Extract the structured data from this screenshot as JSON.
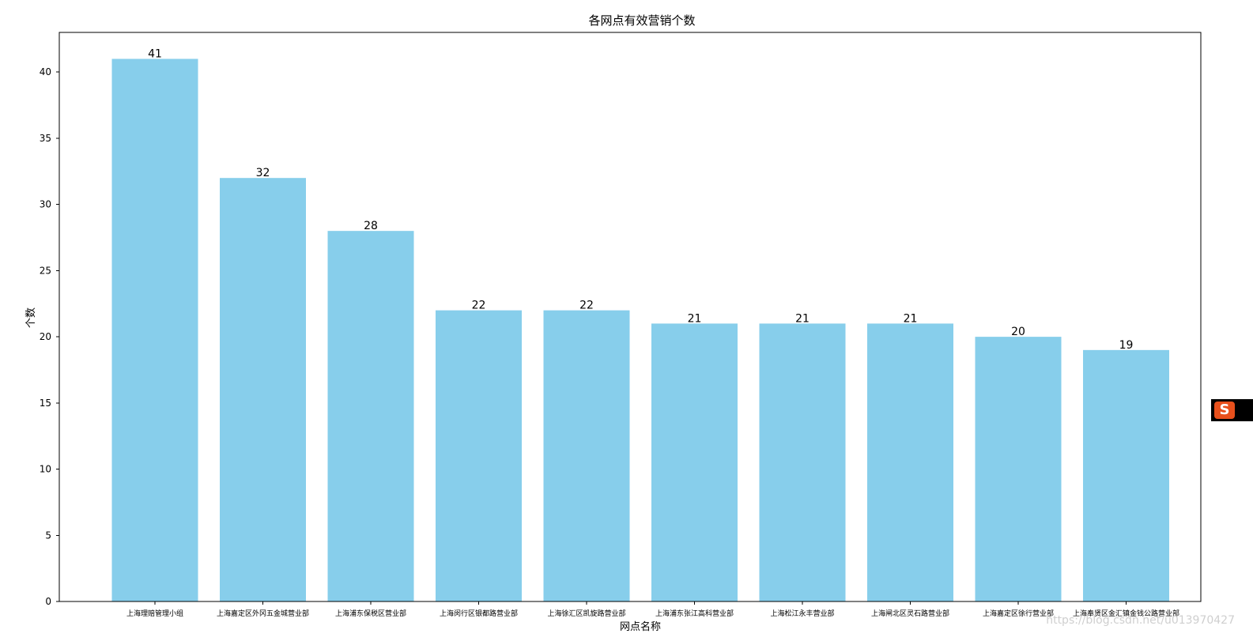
{
  "chart_data": {
    "type": "bar",
    "title": "各网点有效营销个数",
    "xlabel": "网点名称",
    "ylabel": "个数",
    "categories": [
      "上海理赔管理小组",
      "上海嘉定区外冈五金城营业部",
      "上海浦东保税区营业部",
      "上海闵行区银都路营业部",
      "上海徐汇区凯旋路营业部",
      "上海浦东张江高科营业部",
      "上海松江永丰营业部",
      "上海闸北区灵石路营业部",
      "上海嘉定区徐行营业部",
      "上海奉贤区金汇镇金钱公路营业部"
    ],
    "values": [
      41,
      32,
      28,
      22,
      22,
      21,
      21,
      21,
      20,
      19
    ],
    "ylim": [
      0,
      43
    ],
    "yticks": [
      0,
      5,
      10,
      15,
      20,
      25,
      30,
      35,
      40
    ],
    "bar_color": "#87CEEB",
    "grid": false
  },
  "watermark": "https://blog.csdn.net/u013970427",
  "ime_icon": "sogou-ime-icon"
}
